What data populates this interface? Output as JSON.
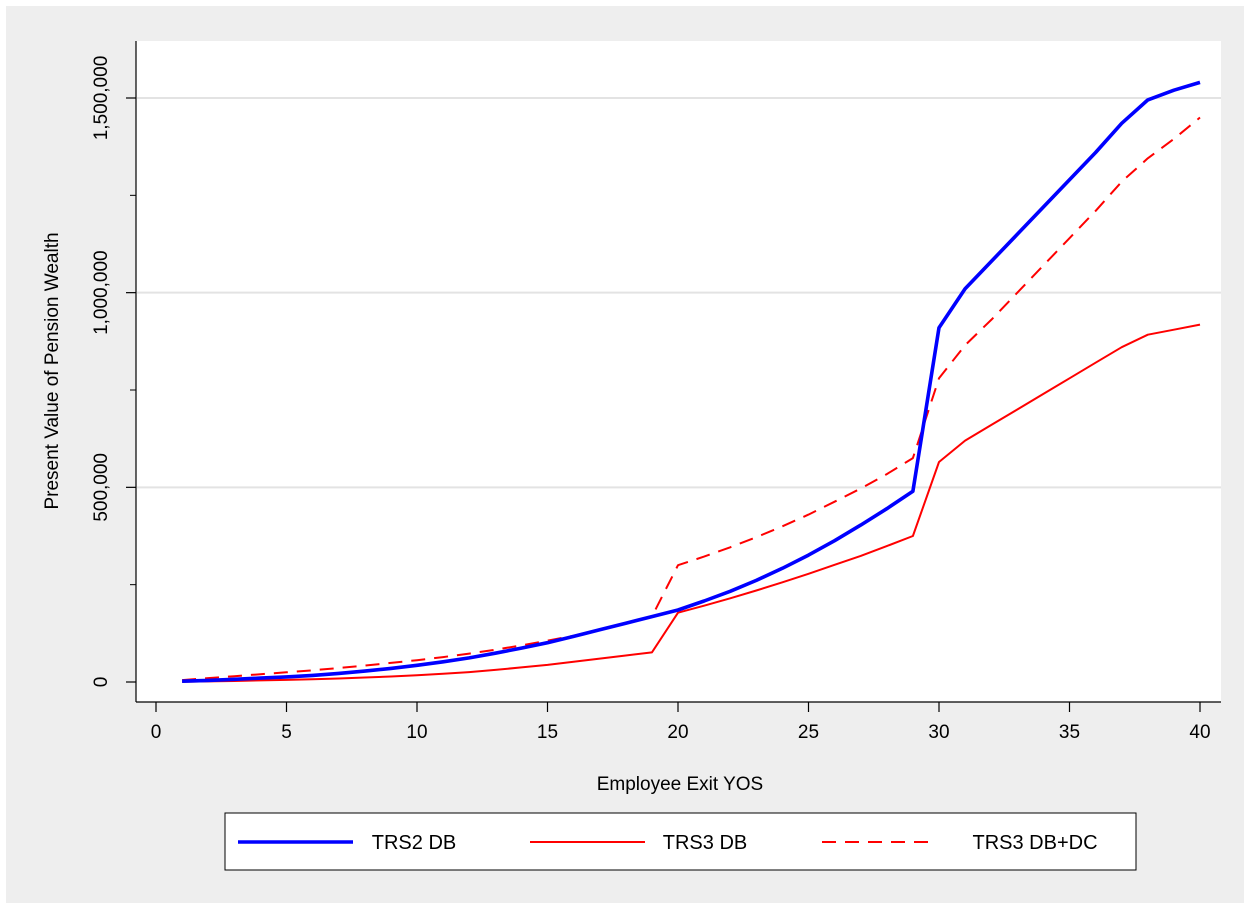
{
  "chart_data": {
    "type": "line",
    "title": "",
    "xlabel": "Employee Exit YOS",
    "ylabel": "Present Value of Pension Wealth",
    "xlim": [
      0,
      40
    ],
    "ylim": [
      0,
      1600000
    ],
    "x_ticks": [
      0,
      5,
      10,
      15,
      20,
      25,
      30,
      35,
      40
    ],
    "x_tick_labels": [
      "0",
      "5",
      "10",
      "15",
      "20",
      "25",
      "30",
      "35",
      "40"
    ],
    "y_ticks": [
      0,
      500000,
      1000000,
      1500000
    ],
    "y_tick_labels": [
      "0",
      "500,000",
      "1,000,000",
      "1,500,000"
    ],
    "grid": "horizontal",
    "legend_position": "bottom",
    "x": [
      1,
      2,
      3,
      4,
      5,
      6,
      7,
      8,
      9,
      10,
      11,
      12,
      13,
      14,
      15,
      16,
      17,
      18,
      19,
      20,
      21,
      22,
      23,
      24,
      25,
      26,
      27,
      28,
      29,
      30,
      31,
      32,
      33,
      34,
      35,
      36,
      37,
      38,
      39,
      40
    ],
    "series": [
      {
        "name": "TRS2 DB",
        "color": "#0000ff",
        "style": "solid",
        "width": "thick",
        "values": [
          2000,
          4000,
          7000,
          10000,
          13000,
          17000,
          22000,
          28000,
          35000,
          43000,
          52000,
          62000,
          74000,
          87000,
          101000,
          117000,
          134000,
          151000,
          168000,
          185000,
          208000,
          233000,
          261000,
          292000,
          326000,
          363000,
          403000,
          445000,
          490000,
          910000,
          1010000,
          1080000,
          1150000,
          1220000,
          1290000,
          1360000,
          1435000,
          1495000,
          1520000,
          1540000
        ]
      },
      {
        "name": "TRS3 DB",
        "color": "#ff0000",
        "style": "solid",
        "width": "thin",
        "values": [
          500,
          1500,
          2500,
          4000,
          5500,
          7000,
          9000,
          11500,
          14000,
          17500,
          21000,
          25500,
          31000,
          37500,
          44000,
          52000,
          60000,
          68000,
          76000,
          178000,
          196000,
          215000,
          235000,
          256000,
          278000,
          301000,
          324000,
          349000,
          375000,
          565000,
          620000,
          660000,
          700000,
          740000,
          780000,
          820000,
          860000,
          892000,
          905000,
          918000
        ]
      },
      {
        "name": "TRS3 DB+DC",
        "color": "#ff0000",
        "style": "dashed",
        "width": "thin",
        "values": [
          5000,
          10000,
          15000,
          20000,
          25000,
          30000,
          36000,
          42000,
          49000,
          56000,
          64000,
          73000,
          83000,
          94000,
          106000,
          119000,
          134000,
          150000,
          168000,
          300000,
          322000,
          346000,
          372000,
          400000,
          430000,
          463000,
          497000,
          534000,
          575000,
          780000,
          865000,
          930000,
          1000000,
          1070000,
          1140000,
          1210000,
          1285000,
          1345000,
          1395000,
          1450000
        ]
      }
    ]
  }
}
